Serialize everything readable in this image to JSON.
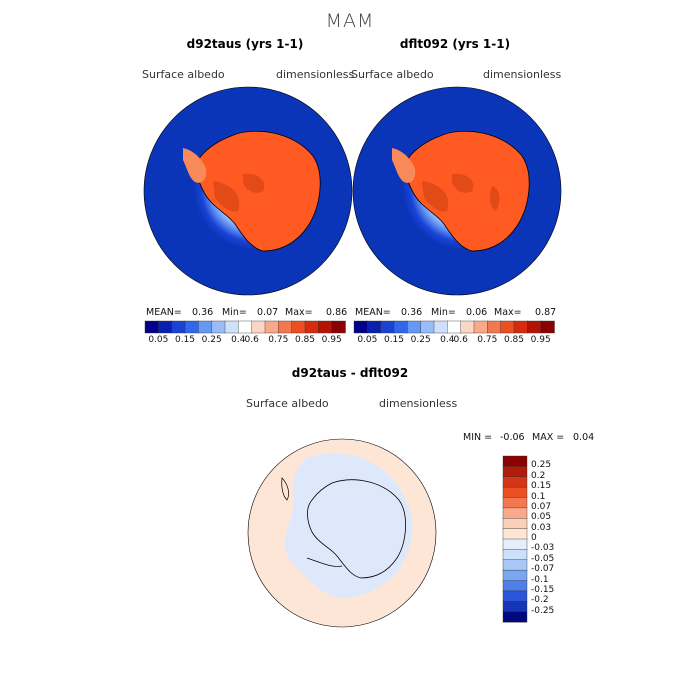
{
  "title": "MAM",
  "panels": [
    {
      "title": "d92taus (yrs 1-1)",
      "variable": "Surface albedo",
      "units": "dimensionless",
      "stats": {
        "mean_label": "MEAN=",
        "mean": "0.36",
        "min_label": "Min=",
        "min": "0.07",
        "max_label": "Max=",
        "max": "0.86"
      }
    },
    {
      "title": "dflt092 (yrs 1-1)",
      "variable": "Surface albedo",
      "units": "dimensionless",
      "stats": {
        "mean_label": "MEAN=",
        "mean": "0.36",
        "min_label": "Min=",
        "min": "0.06",
        "max_label": "Max=",
        "max": "0.87"
      }
    }
  ],
  "top_colorbar": {
    "tick_labels": [
      "0.05",
      "0.15",
      "0.25",
      "0.4",
      "0.6",
      "0.75",
      "0.85",
      "0.95"
    ],
    "colors": [
      "#00008b",
      "#0a1fb0",
      "#1a43d6",
      "#3366ee",
      "#6699f5",
      "#99bbf9",
      "#cfe0fc",
      "#ffffff",
      "#fcd6c4",
      "#f9a88a",
      "#f4784f",
      "#ee4f22",
      "#d82a0e",
      "#b41204",
      "#8b0000"
    ]
  },
  "difference": {
    "title": "d92taus - dflt092",
    "variable": "Surface albedo",
    "units": "dimensionless",
    "min_label": "MIN =",
    "min": "-0.06",
    "max_label": "MAX =",
    "max": "0.04",
    "colorbar_labels": [
      "0.25",
      "0.2",
      "0.15",
      "0.1",
      "0.07",
      "0.05",
      "0.03",
      "0",
      "-0.03",
      "-0.05",
      "-0.07",
      "-0.1",
      "-0.15",
      "-0.2",
      "-0.25"
    ],
    "colorbar_colors": [
      "#8b0000",
      "#b01c0a",
      "#d63515",
      "#ee4f22",
      "#f4784f",
      "#f9a88a",
      "#fcd0b8",
      "#fde6d6",
      "#e4eefc",
      "#cce0fb",
      "#a8c6f7",
      "#7ba6f2",
      "#4d80ec",
      "#2a55d8",
      "#1535b5",
      "#00087f"
    ]
  },
  "colors": {
    "ocean_deep": "#0b35b8",
    "ice_land": "#ff5a22",
    "diff_background": "#fde6d6",
    "diff_negative": "#dde9fb"
  }
}
